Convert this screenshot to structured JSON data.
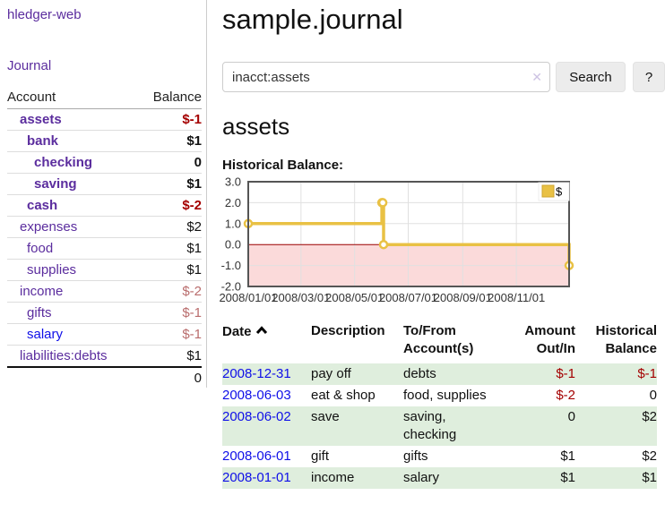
{
  "sidebar": {
    "app_title": "hledger-web",
    "nav": [
      {
        "label": "Journal"
      }
    ],
    "accounts_table": {
      "headers": {
        "account": "Account",
        "balance": "Balance"
      },
      "rows": [
        {
          "name": "assets",
          "depth": 0,
          "strong": true,
          "link": "purple",
          "balance": "$-1",
          "balance_tone": "negative-strong"
        },
        {
          "name": "bank",
          "depth": 1,
          "strong": true,
          "link": "purple",
          "balance": "$1",
          "balance_tone": "normal-strong"
        },
        {
          "name": "checking",
          "depth": 2,
          "strong": true,
          "link": "purple",
          "balance": "0",
          "balance_tone": "normal-strong"
        },
        {
          "name": "saving",
          "depth": 2,
          "strong": true,
          "link": "purple",
          "balance": "$1",
          "balance_tone": "normal-strong"
        },
        {
          "name": "cash",
          "depth": 1,
          "strong": true,
          "link": "purple",
          "balance": "$-2",
          "balance_tone": "negative-strong"
        },
        {
          "name": "expenses",
          "depth": 0,
          "strong": false,
          "link": "purple",
          "balance": "$2",
          "balance_tone": "normal"
        },
        {
          "name": "food",
          "depth": 1,
          "strong": false,
          "link": "purple",
          "balance": "$1",
          "balance_tone": "normal"
        },
        {
          "name": "supplies",
          "depth": 1,
          "strong": false,
          "link": "purple",
          "balance": "$1",
          "balance_tone": "normal"
        },
        {
          "name": "income",
          "depth": 0,
          "strong": false,
          "link": "purple",
          "balance": "$-2",
          "balance_tone": "negative-soft"
        },
        {
          "name": "gifts",
          "depth": 1,
          "strong": false,
          "link": "purple",
          "balance": "$-1",
          "balance_tone": "negative-soft"
        },
        {
          "name": "salary",
          "depth": 1,
          "strong": false,
          "link": "blue",
          "balance": "$-1",
          "balance_tone": "negative-soft"
        },
        {
          "name": "liabilities:debts",
          "depth": 0,
          "strong": false,
          "link": "purple",
          "balance": "$1",
          "balance_tone": "normal"
        }
      ],
      "total": "0"
    }
  },
  "header": {
    "title": "sample.journal"
  },
  "search": {
    "value": "inacct:assets",
    "clear_icon": "✕",
    "button": "Search",
    "help_button": "?"
  },
  "account_page": {
    "title": "assets",
    "chart_label": "Historical Balance:"
  },
  "chart_data": {
    "type": "line",
    "style": "step-after",
    "title": "Historical Balance",
    "series": [
      {
        "name": "$",
        "points": [
          {
            "date": "2008-01-01",
            "value": 1
          },
          {
            "date": "2008-06-01",
            "value": 2
          },
          {
            "date": "2008-06-02",
            "value": 2
          },
          {
            "date": "2008-06-03",
            "value": 0
          },
          {
            "date": "2008-12-31",
            "value": -1
          }
        ]
      }
    ],
    "ylim": [
      -2,
      3
    ],
    "yticks": [
      3,
      2,
      1,
      0,
      -1,
      -2
    ],
    "xlim": [
      "2008-01-01",
      "2008-12-31"
    ],
    "xticks": [
      {
        "date": "2008-01-01",
        "label": "2008/01/01"
      },
      {
        "date": "2008-03-01",
        "label": "2008/03/01"
      },
      {
        "date": "2008-05-01",
        "label": "2008/05/01"
      },
      {
        "date": "2008-07-01",
        "label": "2008/07/01"
      },
      {
        "date": "2008-09-01",
        "label": "2008/09/01"
      },
      {
        "date": "2008-11-01",
        "label": "2008/11/01"
      }
    ],
    "grid": true,
    "legend": {
      "label": "$",
      "position": "top-right"
    },
    "colors": {
      "line": "#e9c144",
      "legend_border": "#cfa52e",
      "marker_fill": "#ffffff",
      "negative_fill": "#fbdada",
      "zero_line": "#990000",
      "grid": "#e0e0e0",
      "border": "#555555"
    }
  },
  "register": {
    "headers": [
      {
        "label": "Date",
        "sorted": "asc",
        "align": "left"
      },
      {
        "label": "Description",
        "align": "left"
      },
      {
        "label": "To/From Account(s)",
        "align": "left"
      },
      {
        "label": "Amount Out/In",
        "align": "right"
      },
      {
        "label": "Historical Balance",
        "align": "right"
      }
    ],
    "rows": [
      {
        "date": "2008-12-31",
        "description": "pay off",
        "accounts": "debts",
        "amount": "$-1",
        "amount_negative": true,
        "balance": "$-1",
        "balance_negative": true
      },
      {
        "date": "2008-06-03",
        "description": "eat & shop",
        "accounts": "food, supplies",
        "amount": "$-2",
        "amount_negative": true,
        "balance": "0",
        "balance_negative": false
      },
      {
        "date": "2008-06-02",
        "description": "save",
        "accounts": "saving, checking",
        "amount": "0",
        "amount_negative": false,
        "balance": "$2",
        "balance_negative": false
      },
      {
        "date": "2008-06-01",
        "description": "gift",
        "accounts": "gifts",
        "amount": "$1",
        "amount_negative": false,
        "balance": "$2",
        "balance_negative": false
      },
      {
        "date": "2008-01-01",
        "description": "income",
        "accounts": "salary",
        "amount": "$1",
        "amount_negative": false,
        "balance": "$1",
        "balance_negative": false
      }
    ]
  },
  "colors": {
    "link_purple": "#5b2d9e",
    "link_blue": "#0f0fe8",
    "negative_strong": "#a40000",
    "negative_soft": "#b96c6c",
    "row_green": "#dfeedd"
  }
}
